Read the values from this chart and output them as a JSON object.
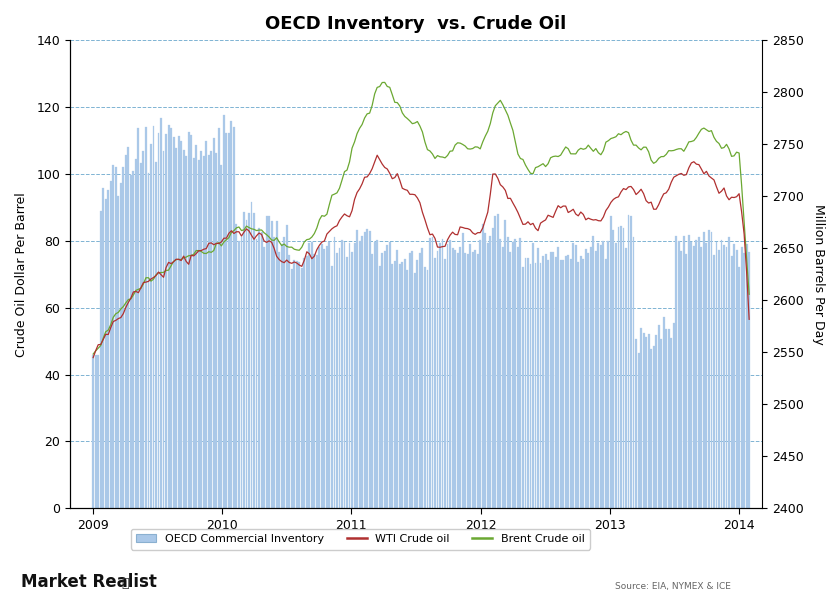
{
  "title": "OECD Inventory  vs. Crude Oil",
  "ylabel_left": "Crude Oil Dollar Per Barrel",
  "ylabel_right": "Million Barrels Per Day",
  "ylim_left": [
    0,
    140
  ],
  "ylim_right": [
    2400,
    2850
  ],
  "yticks_left": [
    0,
    20,
    40,
    60,
    80,
    100,
    120,
    140
  ],
  "yticks_right": [
    2400,
    2450,
    2500,
    2550,
    2600,
    2650,
    2700,
    2750,
    2800,
    2850
  ],
  "background_color": "#ffffff",
  "grid_color": "#7fb3d3",
  "bar_color": "#aac8e8",
  "wti_color": "#b03030",
  "brent_color": "#6ba832",
  "title_fontsize": 13,
  "axis_fontsize": 9,
  "legend_fontsize": 8,
  "source_text": "Source: EIA, NYMEX & ICE",
  "watermark": "Market Realist",
  "xtick_years": [
    2009,
    2010,
    2011,
    2012,
    2013,
    2014
  ],
  "xlim": [
    2008.82,
    2014.18
  ]
}
